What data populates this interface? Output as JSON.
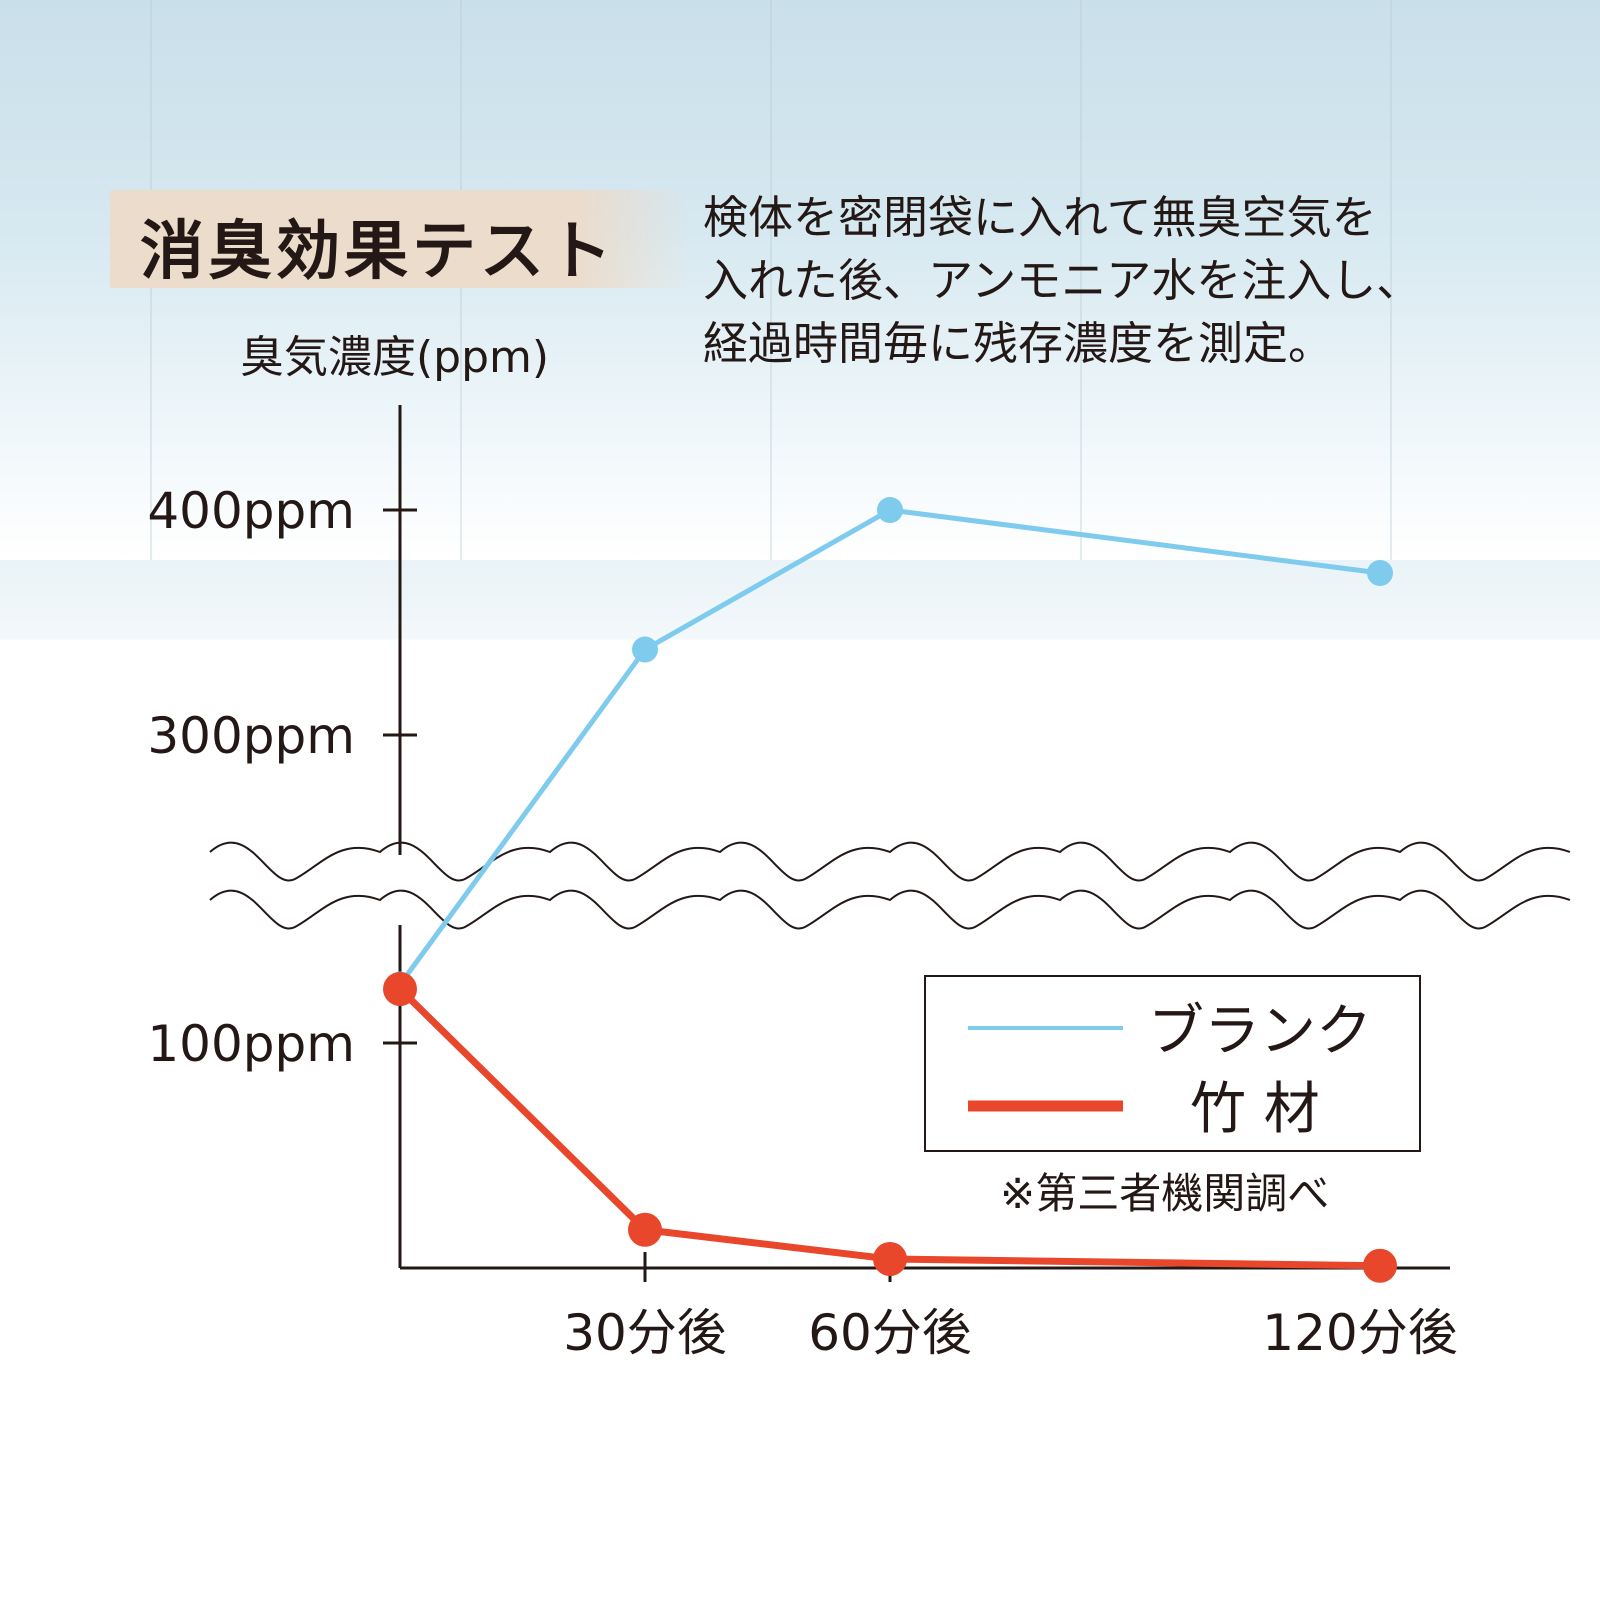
{
  "title": "消臭効果テスト",
  "description": "検体を密閉袋に入れて無臭空気を\n入れた後、アンモニア水を注入し、\n経過時間毎に残存濃度を測定。",
  "note": "※第三者機関調べ",
  "chart_data": {
    "type": "line",
    "ylabel": "臭気濃度(ppm)",
    "x": [
      0,
      30,
      60,
      120
    ],
    "x_tick_labels": [
      "",
      "30分後",
      "60分後",
      "120分後"
    ],
    "y_tick_labels": [
      "100ppm",
      "300ppm",
      "400ppm"
    ],
    "y_ticks": [
      100,
      300,
      400
    ],
    "y_axis_break": [
      200,
      250
    ],
    "ylim": [
      0,
      420
    ],
    "grid": false,
    "legend_position": "bottom-right",
    "series": [
      {
        "name": "ブランク",
        "values": [
          126,
          338,
          400,
          372
        ],
        "color": "#7ecbee"
      },
      {
        "name": "竹 材",
        "values": [
          124,
          17,
          4,
          1
        ],
        "color": "#e8472b"
      }
    ]
  }
}
